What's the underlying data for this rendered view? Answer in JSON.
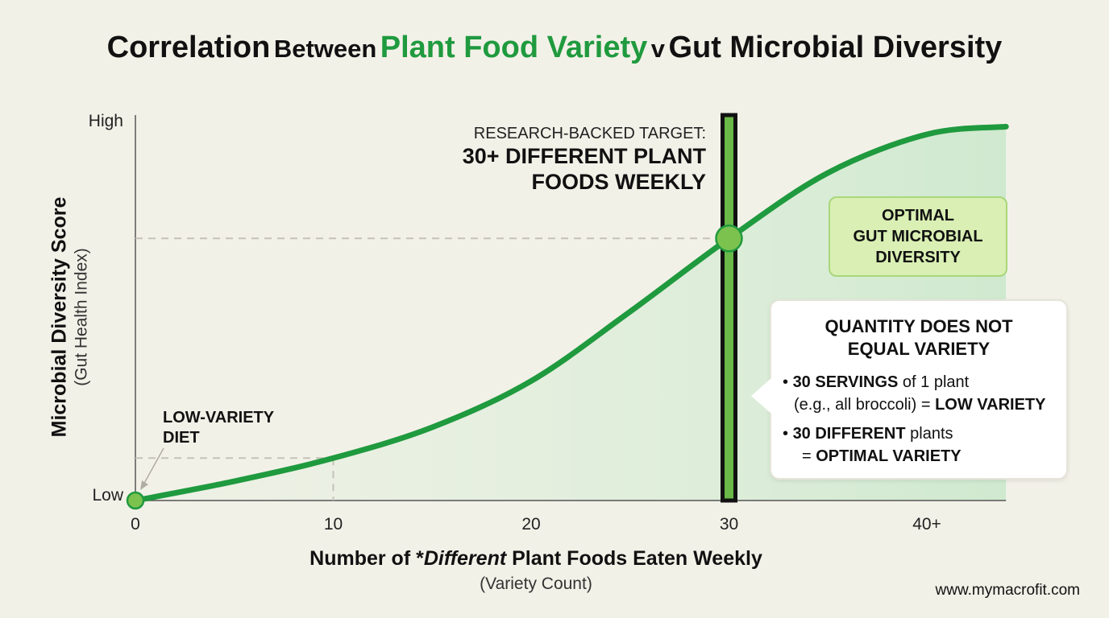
{
  "title": {
    "part1": "Correlation",
    "part2": "Between",
    "part3": "Plant Food Variety",
    "part4": "v",
    "part5": "Gut Microbial Diversity"
  },
  "colors": {
    "curve": "#1f9a3e",
    "fill": "#cfe9cf",
    "marker": "#7cc24f",
    "target_bar": "#69b848",
    "target_border": "#111111"
  },
  "chart_data": {
    "type": "area",
    "xlabel_main_prefix": "Number of *",
    "xlabel_main_italic": "Different",
    "xlabel_main_suffix": " Plant Foods Eaten Weekly",
    "xlabel_sub": "(Variety Count)",
    "ylabel_main": "Microbial Diversity Score",
    "ylabel_sub": "(Gut Health Index)",
    "x_ticks": [
      {
        "value": 0,
        "label": "0"
      },
      {
        "value": 10,
        "label": "10"
      },
      {
        "value": 20,
        "label": "20"
      },
      {
        "value": 30,
        "label": "30"
      },
      {
        "value": 40,
        "label": "40+"
      }
    ],
    "y_ticks": [
      {
        "value": 0,
        "label": "Low"
      },
      {
        "value": 1,
        "label": "High"
      }
    ],
    "xlim": [
      0,
      44
    ],
    "ylim": [
      0,
      1
    ],
    "x": [
      0,
      5,
      10,
      15,
      20,
      25,
      30,
      35,
      40,
      44
    ],
    "y": [
      0.0,
      0.05,
      0.11,
      0.19,
      0.31,
      0.49,
      0.68,
      0.85,
      0.95,
      0.97
    ],
    "highlight_points": [
      {
        "x": 0,
        "y": 0.0
      },
      {
        "x": 30,
        "y": 0.68
      }
    ],
    "reference_points": [
      {
        "x": 10,
        "y": 0.11
      },
      {
        "x": 30,
        "y": 0.68
      }
    ],
    "target_x": 30,
    "annotations": {
      "target_line1": "RESEARCH-BACKED TARGET:",
      "target_line2": "30+ DIFFERENT PLANT",
      "target_line3": "FOODS WEEKLY",
      "optimal_line1": "OPTIMAL",
      "optimal_line2": "GUT MICROBIAL",
      "optimal_line3": "DIVERSITY",
      "low_line1": "LOW-VARIETY",
      "low_line2": "DIET"
    }
  },
  "callout": {
    "heading_line1": "QUANTITY DOES NOT",
    "heading_line2": "EQUAL VARIETY",
    "b1_bold": "30 SERVINGS",
    "b1_rest": " of 1 plant",
    "b1_line2_pre": "(e.g., all broccoli) = ",
    "b1_line2_bold": "LOW VARIETY",
    "b2_bold": "30 DIFFERENT",
    "b2_rest": " plants",
    "b2_line2_pre": "= ",
    "b2_line2_bold": "OPTIMAL VARIETY"
  },
  "footer": {
    "watermark": "www.mymacrofit.com"
  }
}
